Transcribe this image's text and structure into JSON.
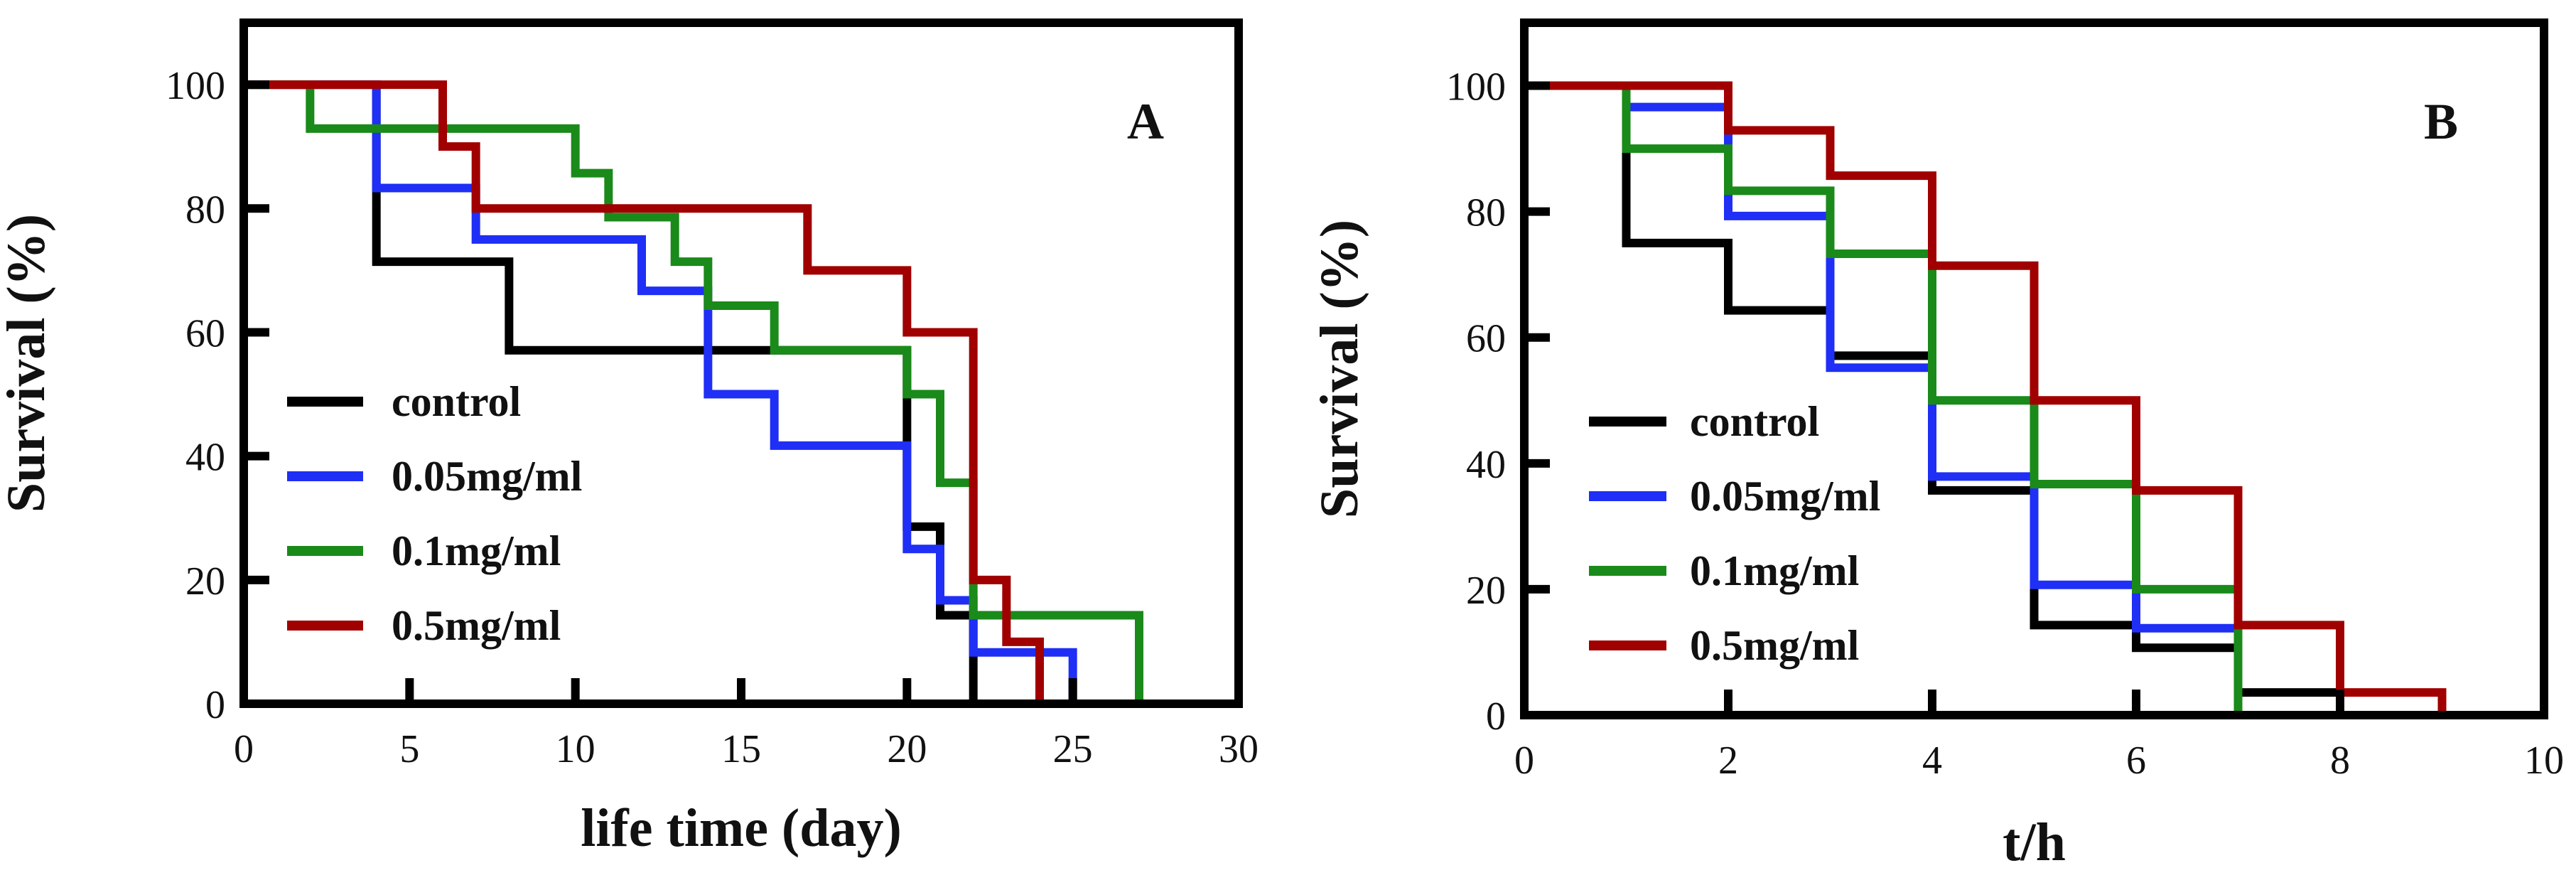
{
  "colors": {
    "control": "#000000",
    "dose_005": "#1f2ff5",
    "dose_01": "#1a8a1a",
    "dose_05": "#a00000"
  },
  "chart_data": [
    {
      "type": "line",
      "step": true,
      "panel_label": "A",
      "xlabel": "life time (day)",
      "ylabel": "Survival (%)",
      "xlim": [
        0,
        30
      ],
      "ylim": [
        0,
        110
      ],
      "xticks": [
        "0",
        "5",
        "10",
        "15",
        "20",
        "25",
        "30"
      ],
      "yticks": [
        "0",
        "20",
        "40",
        "60",
        "80",
        "100"
      ],
      "legend_position": "bottom-left",
      "series": [
        {
          "name": "control",
          "color_key": "control",
          "x": [
            0,
            4,
            8,
            20,
            21,
            22
          ],
          "y": [
            100,
            71.4,
            57.1,
            28.6,
            14.3,
            0
          ]
        },
        {
          "name": "0.05mg/ml",
          "color_key": "dose_005",
          "x": [
            0,
            4,
            7,
            12,
            14,
            16,
            20,
            21,
            22,
            25
          ],
          "y": [
            100,
            83.3,
            75,
            66.7,
            50,
            41.7,
            25,
            16.7,
            8.3,
            0
          ]
        },
        {
          "name": "0.1mg/ml",
          "color_key": "dose_01",
          "x": [
            0,
            2,
            10,
            11,
            13,
            14,
            16,
            20,
            21,
            22,
            27
          ],
          "y": [
            100,
            92.9,
            85.7,
            78.6,
            71.4,
            64.3,
            57.1,
            50,
            35.7,
            14.3,
            0
          ]
        },
        {
          "name": "0.5mg/ml",
          "color_key": "dose_05",
          "x": [
            0,
            6,
            7,
            8,
            17,
            20,
            22,
            23,
            24
          ],
          "y": [
            100,
            90,
            80,
            80,
            70,
            60,
            20,
            10,
            0
          ]
        }
      ]
    },
    {
      "type": "line",
      "step": true,
      "panel_label": "B",
      "xlabel": "t/h",
      "ylabel": "Survival (%)",
      "xlim": [
        0,
        10
      ],
      "ylim": [
        0,
        110
      ],
      "xticks": [
        "0",
        "2",
        "4",
        "6",
        "8",
        "10"
      ],
      "yticks": [
        "0",
        "20",
        "40",
        "60",
        "80",
        "100"
      ],
      "legend_position": "bottom-left",
      "series": [
        {
          "name": "control",
          "color_key": "control",
          "x": [
            0,
            1,
            2,
            3,
            4,
            5,
            6,
            7,
            8
          ],
          "y": [
            100,
            75,
            64.3,
            57.1,
            35.7,
            14.3,
            10.7,
            3.6,
            0
          ]
        },
        {
          "name": "0.05mg/ml",
          "color_key": "dose_005",
          "x": [
            0,
            1,
            2,
            3,
            4,
            5,
            6,
            7
          ],
          "y": [
            100,
            96.6,
            79.3,
            55.2,
            37.9,
            20.7,
            13.8,
            0
          ]
        },
        {
          "name": "0.1mg/ml",
          "color_key": "dose_01",
          "x": [
            0,
            1,
            2,
            3,
            4,
            5,
            6,
            7
          ],
          "y": [
            100,
            90,
            83.3,
            73.3,
            50,
            36.7,
            20,
            0
          ]
        },
        {
          "name": "0.5mg/ml",
          "color_key": "dose_05",
          "x": [
            0,
            2,
            3,
            4,
            5,
            6,
            7,
            8,
            9
          ],
          "y": [
            100,
            92.9,
            85.7,
            71.4,
            50,
            35.7,
            14.3,
            3.6,
            0
          ]
        }
      ]
    }
  ]
}
